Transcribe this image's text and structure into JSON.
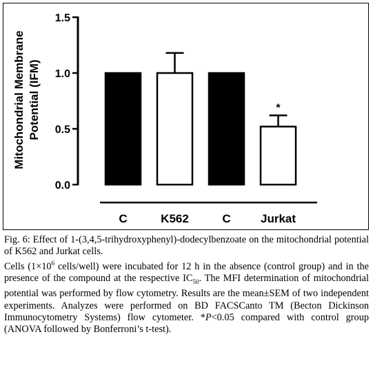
{
  "chart_data": {
    "type": "bar",
    "categories": [
      "C",
      "K562",
      "C",
      "Jurkat"
    ],
    "values": [
      1.0,
      1.0,
      1.0,
      0.52
    ],
    "errors": [
      0,
      0.18,
      0,
      0.1
    ],
    "bar_fills": [
      "#000000",
      "#ffffff",
      "#000000",
      "#ffffff"
    ],
    "annotations": [
      "",
      "",
      "",
      "*"
    ],
    "ylabel_line1": "Mitochondrial Membrane",
    "ylabel_line2": "Potential (IFM)",
    "ylim": [
      0,
      1.5
    ],
    "yticks": [
      0.0,
      0.5,
      1.0,
      1.5
    ],
    "ytick_labels": [
      "0.0",
      "0.5",
      "1.0",
      "1.5"
    ],
    "grid": false,
    "legend": "none"
  },
  "caption": {
    "title": "Fig. 6: Effect of 1-(3,4,5-trihydroxyphenyl)-dodecylbenzoate on the mitochondrial potential of K562 and Jurkat cells.",
    "line1_a": "Cells (1×10",
    "line1_sup": "6",
    "line1_b": " cells/well) were incubated for 12 h in the absence (control group) and in the presence of the compound at the respective IC",
    "line1_sub": "50",
    "line1_c": ". The MFI determination of mitochondrial potential was performed by flow cytometry. Results are the mean±SEM of two independent experiments. Analyzes were performed on BD FACSCanto TM (Becton Dickinson Immunocytometry Systems) flow cytometer. ",
    "pvalue_a": "*",
    "pvalue_italic": "P",
    "pvalue_b": "<0.05 compared with control group (ANOVA followed by Bonferroni’s t-test)."
  }
}
